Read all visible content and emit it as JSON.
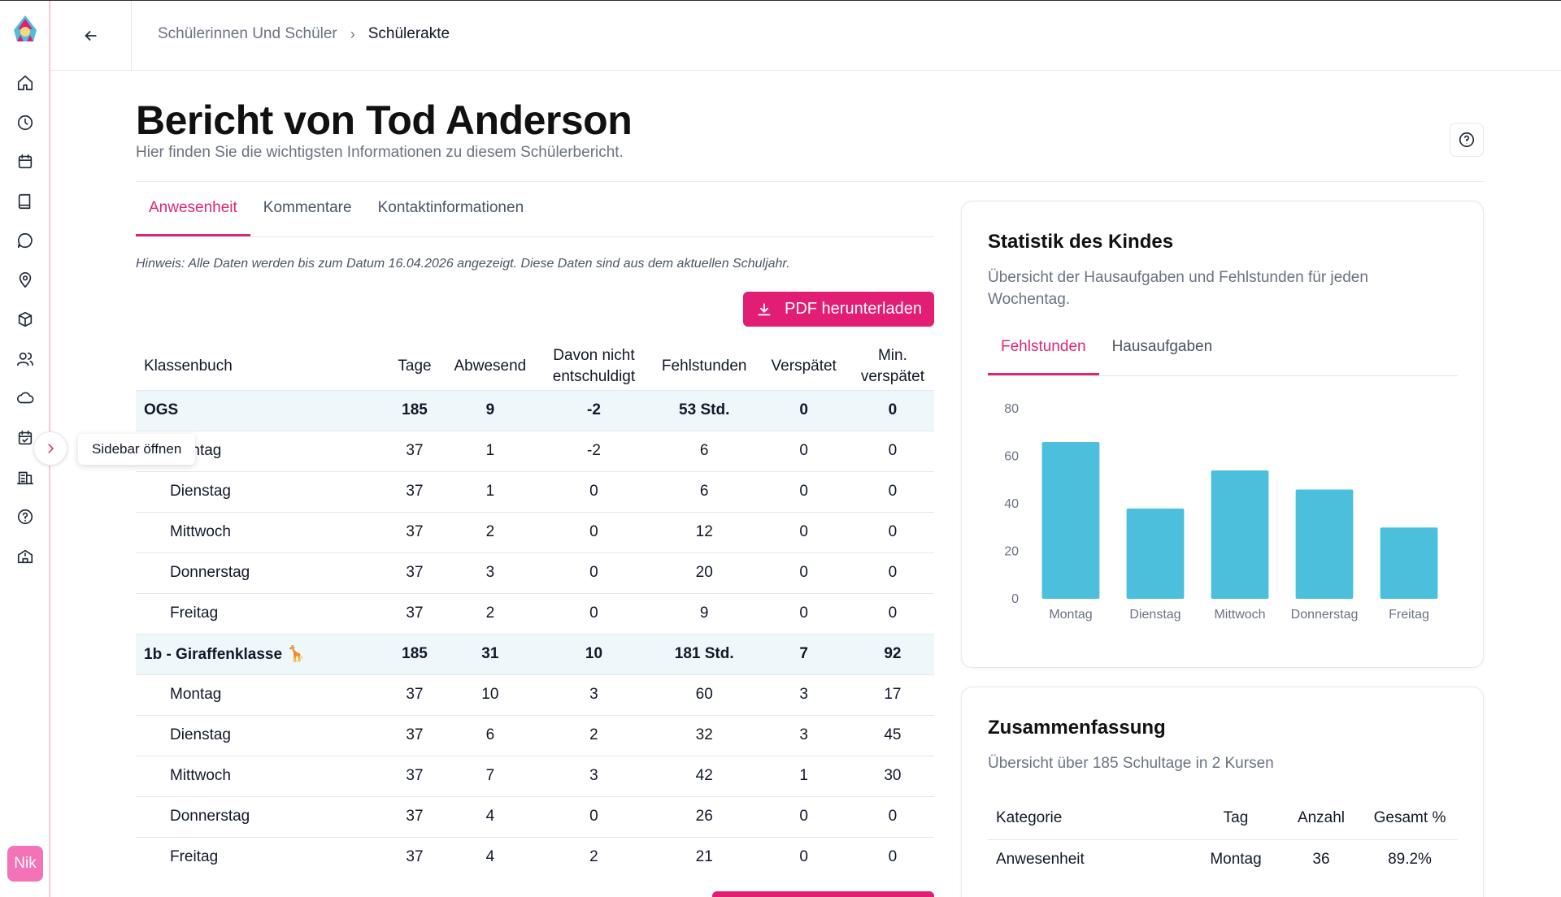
{
  "sidebar": {
    "icons": [
      "home-icon",
      "clock-icon",
      "calendar-icon",
      "book-icon",
      "chat-icon",
      "location-icon",
      "box-icon",
      "users-icon",
      "cloud-icon",
      "calendar-check-icon",
      "building-icon",
      "help-icon",
      "school-icon"
    ],
    "avatar": "Nik",
    "tooltip": "Sidebar öffnen"
  },
  "breadcrumb": {
    "parent": "Schülerinnen Und Schüler",
    "sep": "›",
    "current": "Schülerakte"
  },
  "header": {
    "title": "Bericht von Tod Anderson",
    "subtitle": "Hier finden Sie die wichtigsten Informationen zu diesem Schülerbericht."
  },
  "tabs": [
    "Anwesenheit",
    "Kommentare",
    "Kontaktinformationen"
  ],
  "hint": "Hinweis: Alle Daten werden bis zum Datum 16.04.2026 angezeigt. Diese Daten sind aus dem aktuellen Schuljahr.",
  "pdf_button": "PDF herunterladen",
  "table": {
    "headers": [
      "Klassenbuch",
      "Tage",
      "Abwesend",
      "Davon nicht entschuldigt",
      "Fehlstunden",
      "Verspätet",
      "Min. verspätet"
    ],
    "rows": [
      {
        "group": true,
        "cells": [
          "OGS",
          "185",
          "9",
          "-2",
          "53 Std.",
          "0",
          "0"
        ]
      },
      {
        "group": false,
        "cells": [
          "Montag",
          "37",
          "1",
          "-2",
          "6",
          "0",
          "0"
        ]
      },
      {
        "group": false,
        "cells": [
          "Dienstag",
          "37",
          "1",
          "0",
          "6",
          "0",
          "0"
        ]
      },
      {
        "group": false,
        "cells": [
          "Mittwoch",
          "37",
          "2",
          "0",
          "12",
          "0",
          "0"
        ]
      },
      {
        "group": false,
        "cells": [
          "Donnerstag",
          "37",
          "3",
          "0",
          "20",
          "0",
          "0"
        ]
      },
      {
        "group": false,
        "cells": [
          "Freitag",
          "37",
          "2",
          "0",
          "9",
          "0",
          "0"
        ]
      },
      {
        "group": true,
        "cells": [
          "1b - Giraffenklasse 🦒",
          "185",
          "31",
          "10",
          "181 Std.",
          "7",
          "92"
        ]
      },
      {
        "group": false,
        "cells": [
          "Montag",
          "37",
          "10",
          "3",
          "60",
          "3",
          "17"
        ]
      },
      {
        "group": false,
        "cells": [
          "Dienstag",
          "37",
          "6",
          "2",
          "32",
          "3",
          "45"
        ]
      },
      {
        "group": false,
        "cells": [
          "Mittwoch",
          "37",
          "7",
          "3",
          "42",
          "1",
          "30"
        ]
      },
      {
        "group": false,
        "cells": [
          "Donnerstag",
          "37",
          "4",
          "0",
          "26",
          "0",
          "0"
        ]
      },
      {
        "group": false,
        "cells": [
          "Freitag",
          "37",
          "4",
          "2",
          "21",
          "0",
          "0"
        ]
      }
    ]
  },
  "stats_card": {
    "title": "Statistik des Kindes",
    "subtitle": "Übersicht der Hausaufgaben und Fehlstunden für jeden Wochentag.",
    "tabs": [
      "Fehlstunden",
      "Hausaufgaben"
    ]
  },
  "chart_data": {
    "type": "bar",
    "categories": [
      "Montag",
      "Dienstag",
      "Mittwoch",
      "Donnerstag",
      "Freitag"
    ],
    "values": [
      66,
      38,
      54,
      46,
      30
    ],
    "ylim": [
      0,
      80
    ],
    "yticks": [
      "0",
      "20",
      "40",
      "60",
      "80"
    ],
    "color": "#4bbfdc",
    "grid": false
  },
  "summary_card": {
    "title": "Zusammenfassung",
    "subtitle": "Übersicht über 185 Schultage in 2 Kursen",
    "headers": [
      "Kategorie",
      "Tag",
      "Anzahl",
      "Gesamt %"
    ],
    "rows": [
      [
        "Anwesenheit",
        "Montag",
        "36",
        "89.2%"
      ]
    ]
  },
  "colors": {
    "accent": "#e11d74",
    "bar": "#4bbfdc",
    "group_bg": "#eef7fa"
  }
}
